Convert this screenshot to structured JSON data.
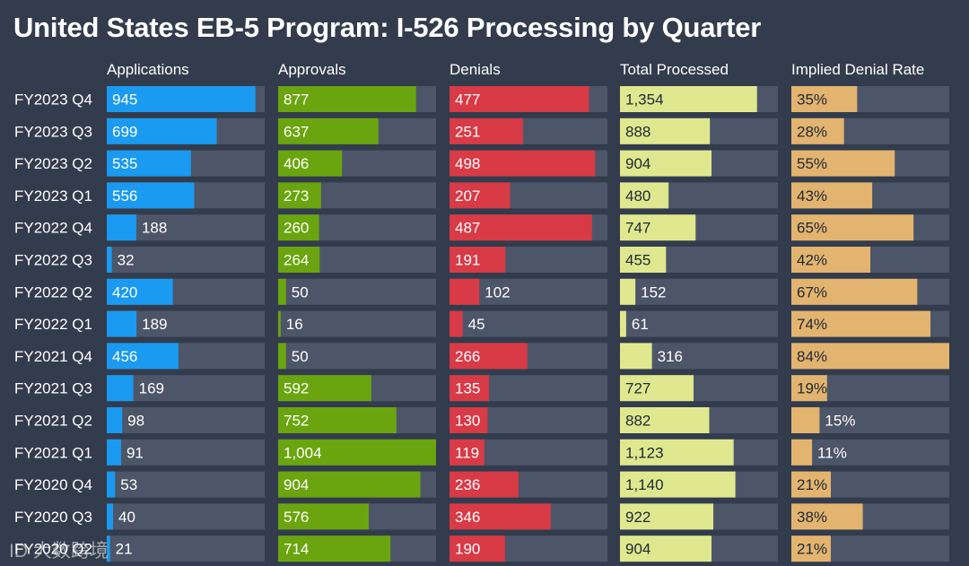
{
  "chart_data": {
    "type": "bar",
    "title": "United States EB-5 Program: I-526 Processing by Quarter",
    "categories": [
      "FY2023 Q4",
      "FY2023 Q3",
      "FY2023 Q2",
      "FY2023 Q1",
      "FY2022 Q4",
      "FY2022 Q3",
      "FY2022 Q2",
      "FY2022 Q1",
      "FY2021 Q4",
      "FY2021 Q3",
      "FY2021 Q2",
      "FY2021 Q1",
      "FY2020 Q4",
      "FY2020 Q3",
      "FY2020 Q2"
    ],
    "series": [
      {
        "name": "Applications",
        "color": "#1a9af0",
        "max": 1004,
        "unit": "",
        "values": [
          945,
          699,
          535,
          556,
          188,
          32,
          420,
          189,
          456,
          169,
          98,
          91,
          53,
          40,
          21
        ],
        "labels": [
          "945",
          "699",
          "535",
          "556",
          "188",
          "32",
          "420",
          "189",
          "456",
          "169",
          "98",
          "91",
          "53",
          "40",
          "21"
        ]
      },
      {
        "name": "Approvals",
        "color": "#6aa50f",
        "max": 1004,
        "unit": "",
        "values": [
          877,
          637,
          406,
          273,
          260,
          264,
          50,
          16,
          50,
          592,
          752,
          1004,
          904,
          576,
          714
        ],
        "labels": [
          "877",
          "637",
          "406",
          "273",
          "260",
          "264",
          "50",
          "16",
          "50",
          "592",
          "752",
          "1,004",
          "904",
          "576",
          "714"
        ]
      },
      {
        "name": "Denials",
        "color": "#d83a46",
        "max": 540,
        "unit": "",
        "values": [
          477,
          251,
          498,
          207,
          487,
          191,
          102,
          45,
          266,
          135,
          130,
          119,
          236,
          346,
          190
        ],
        "labels": [
          "477",
          "251",
          "498",
          "207",
          "487",
          "191",
          "102",
          "45",
          "266",
          "135",
          "130",
          "119",
          "236",
          "346",
          "190"
        ]
      },
      {
        "name": "Total Processed",
        "color": "#dfe88e",
        "max": 1560,
        "unit": "",
        "values": [
          1354,
          888,
          904,
          480,
          747,
          455,
          152,
          61,
          316,
          727,
          882,
          1123,
          1140,
          922,
          904
        ],
        "labels": [
          "1,354",
          "888",
          "904",
          "480",
          "747",
          "455",
          "152",
          "61",
          "316",
          "727",
          "882",
          "1,123",
          "1,140",
          "922",
          "904"
        ]
      },
      {
        "name": "Implied Denial Rate",
        "color": "#e3b46f",
        "max": 84,
        "unit": "%",
        "values": [
          35,
          28,
          55,
          43,
          65,
          42,
          67,
          74,
          84,
          19,
          15,
          11,
          21,
          38,
          21
        ],
        "labels": [
          "35%",
          "28%",
          "55%",
          "43%",
          "65%",
          "42%",
          "67%",
          "74%",
          "84%",
          "19%",
          "15%",
          "11%",
          "21%",
          "38%",
          "21%"
        ]
      }
    ],
    "track_color": "#4d5668",
    "background": "#323c4c"
  },
  "watermark": "ID 大数跨境"
}
